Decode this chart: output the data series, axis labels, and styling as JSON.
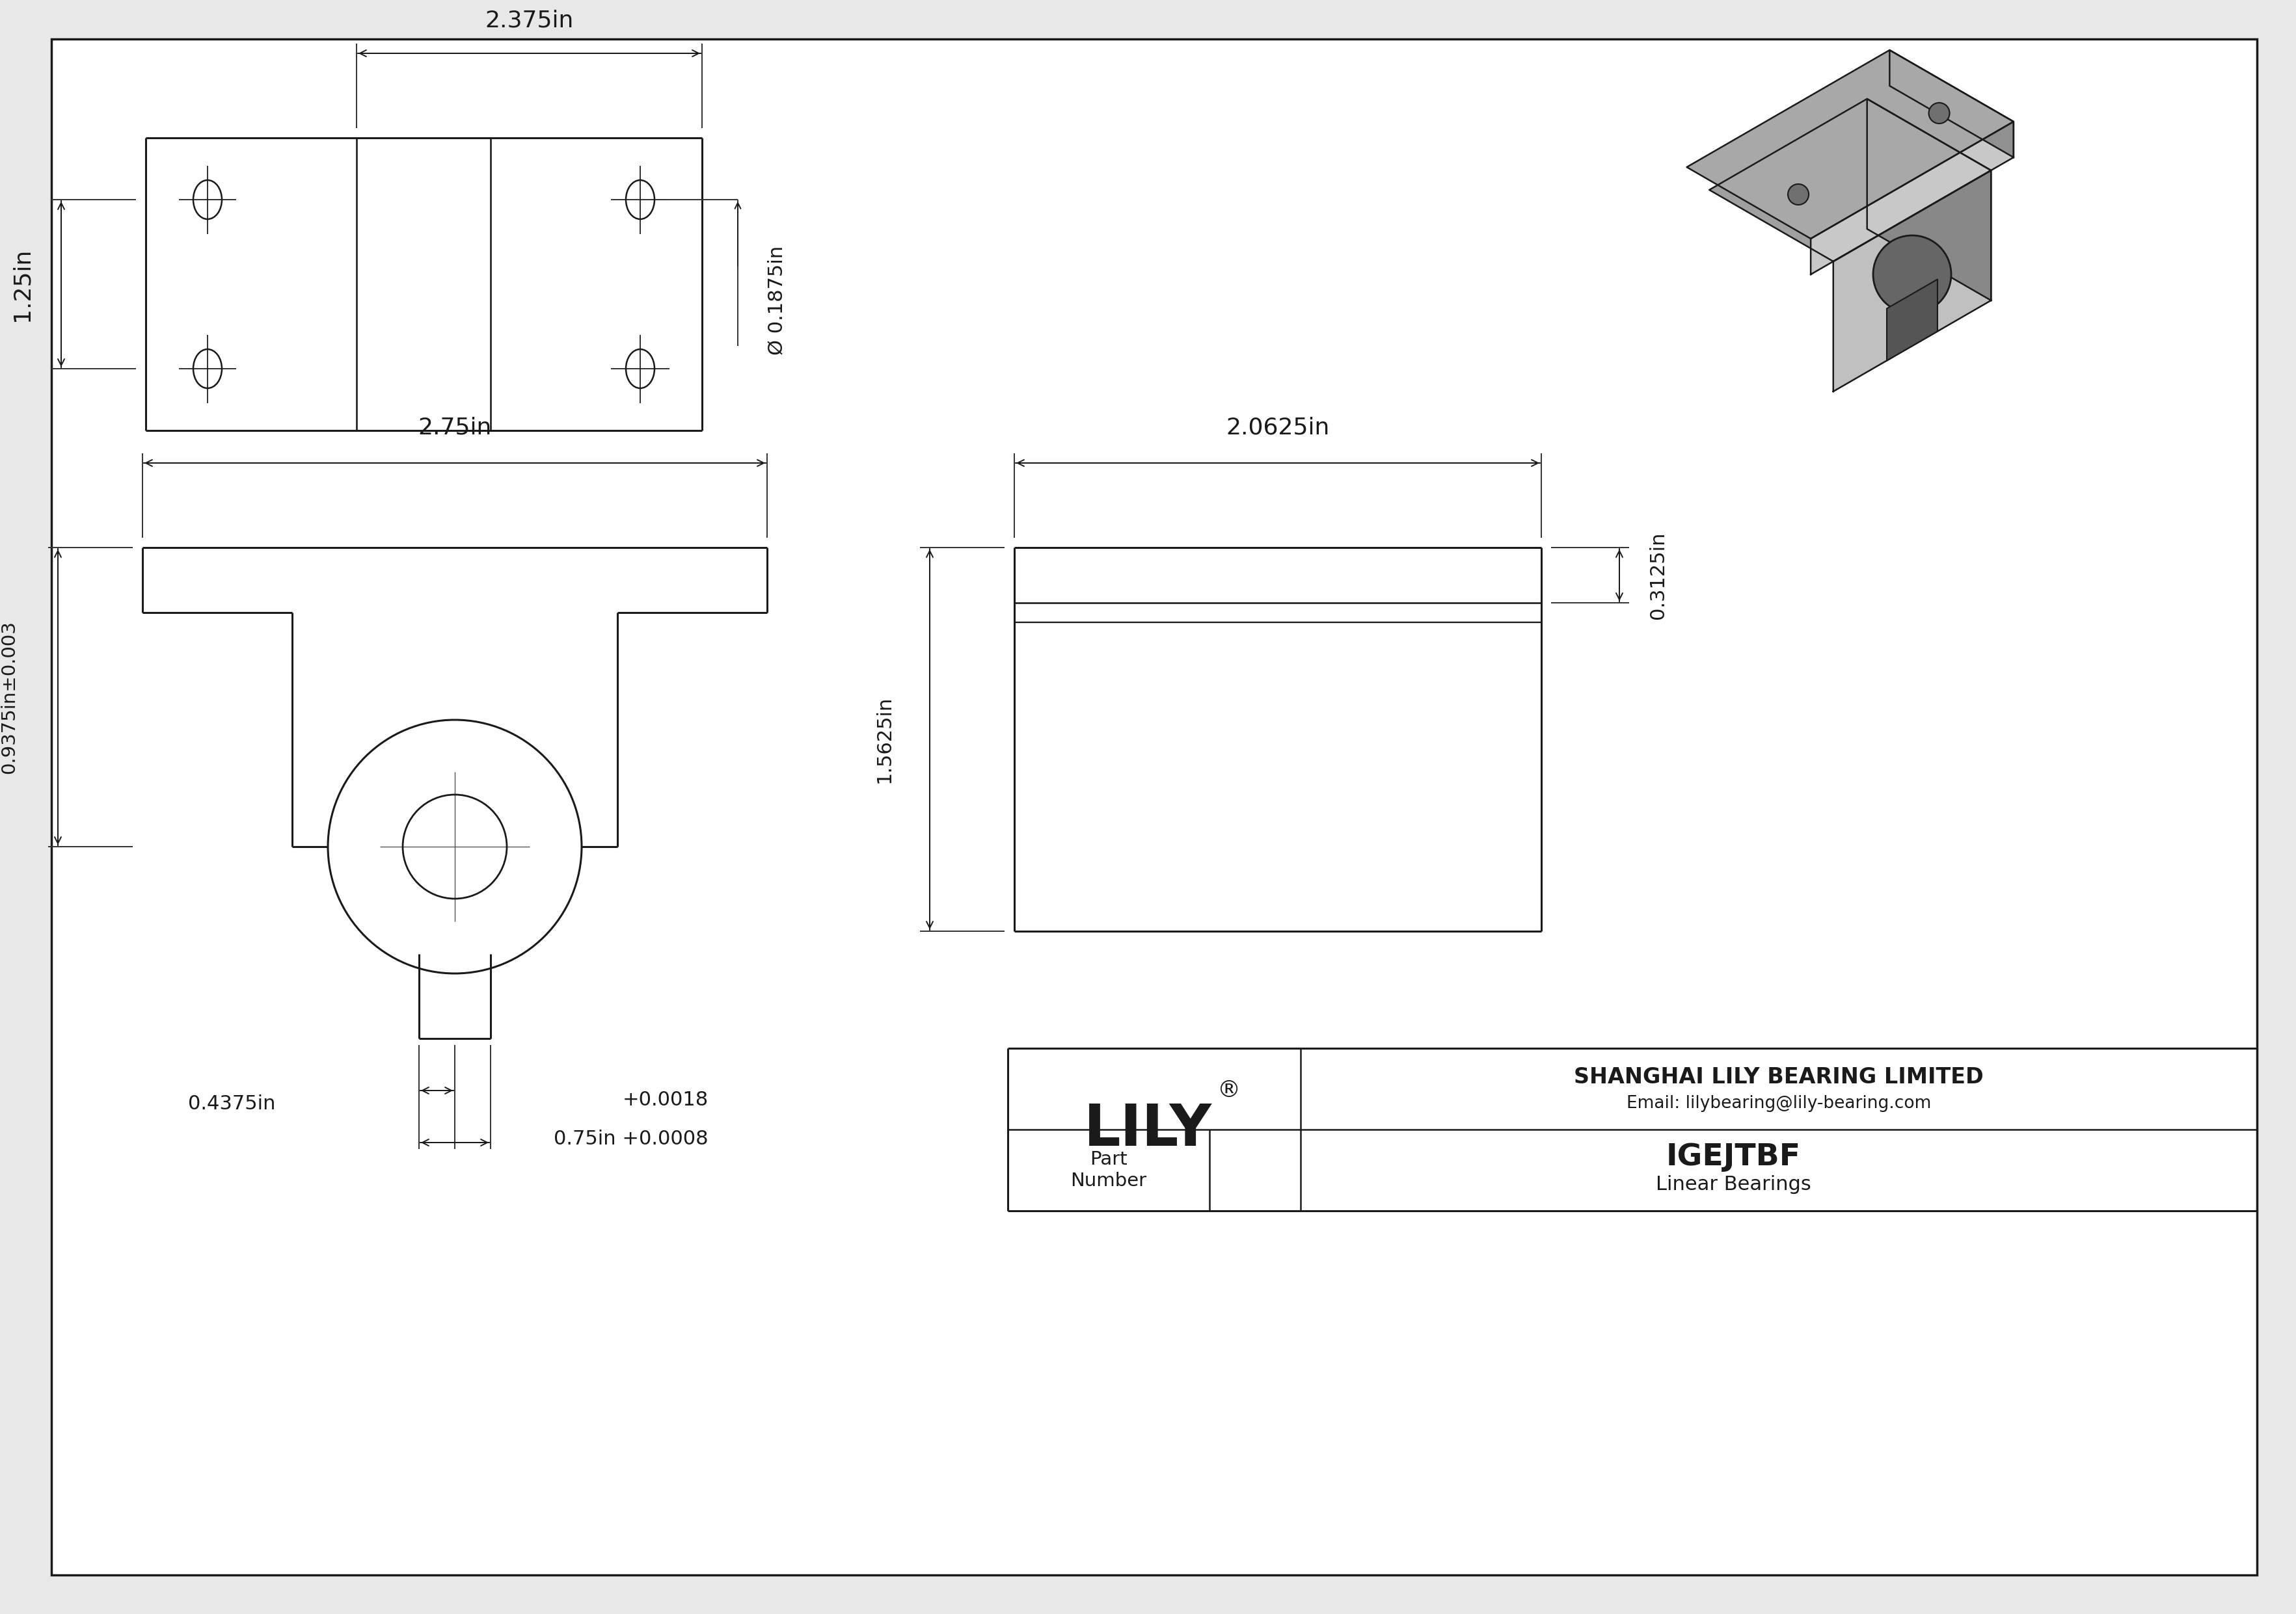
{
  "bg_color": "#e8e8e8",
  "drawing_bg": "#ffffff",
  "line_color": "#1a1a1a",
  "title": "IGEJTBF",
  "subtitle": "Linear Bearings",
  "company": "SHANGHAI LILY BEARING LIMITED",
  "email": "Email: lilybearing@lily-bearing.com",
  "part_label": "Part\nNumber",
  "dim_2375": "2.375in",
  "dim_125": "1.25in",
  "dim_01875": "Ø 0.1875in",
  "dim_275": "2.75in",
  "dim_09375": "0.9375in±0.003",
  "dim_04375": "0.4375in",
  "dim_075_line1": "+0.0018",
  "dim_075_line2": "0.75in +0.0008",
  "dim_20625": "2.0625in",
  "dim_15625": "1.5625in",
  "dim_03125": "0.3125in"
}
